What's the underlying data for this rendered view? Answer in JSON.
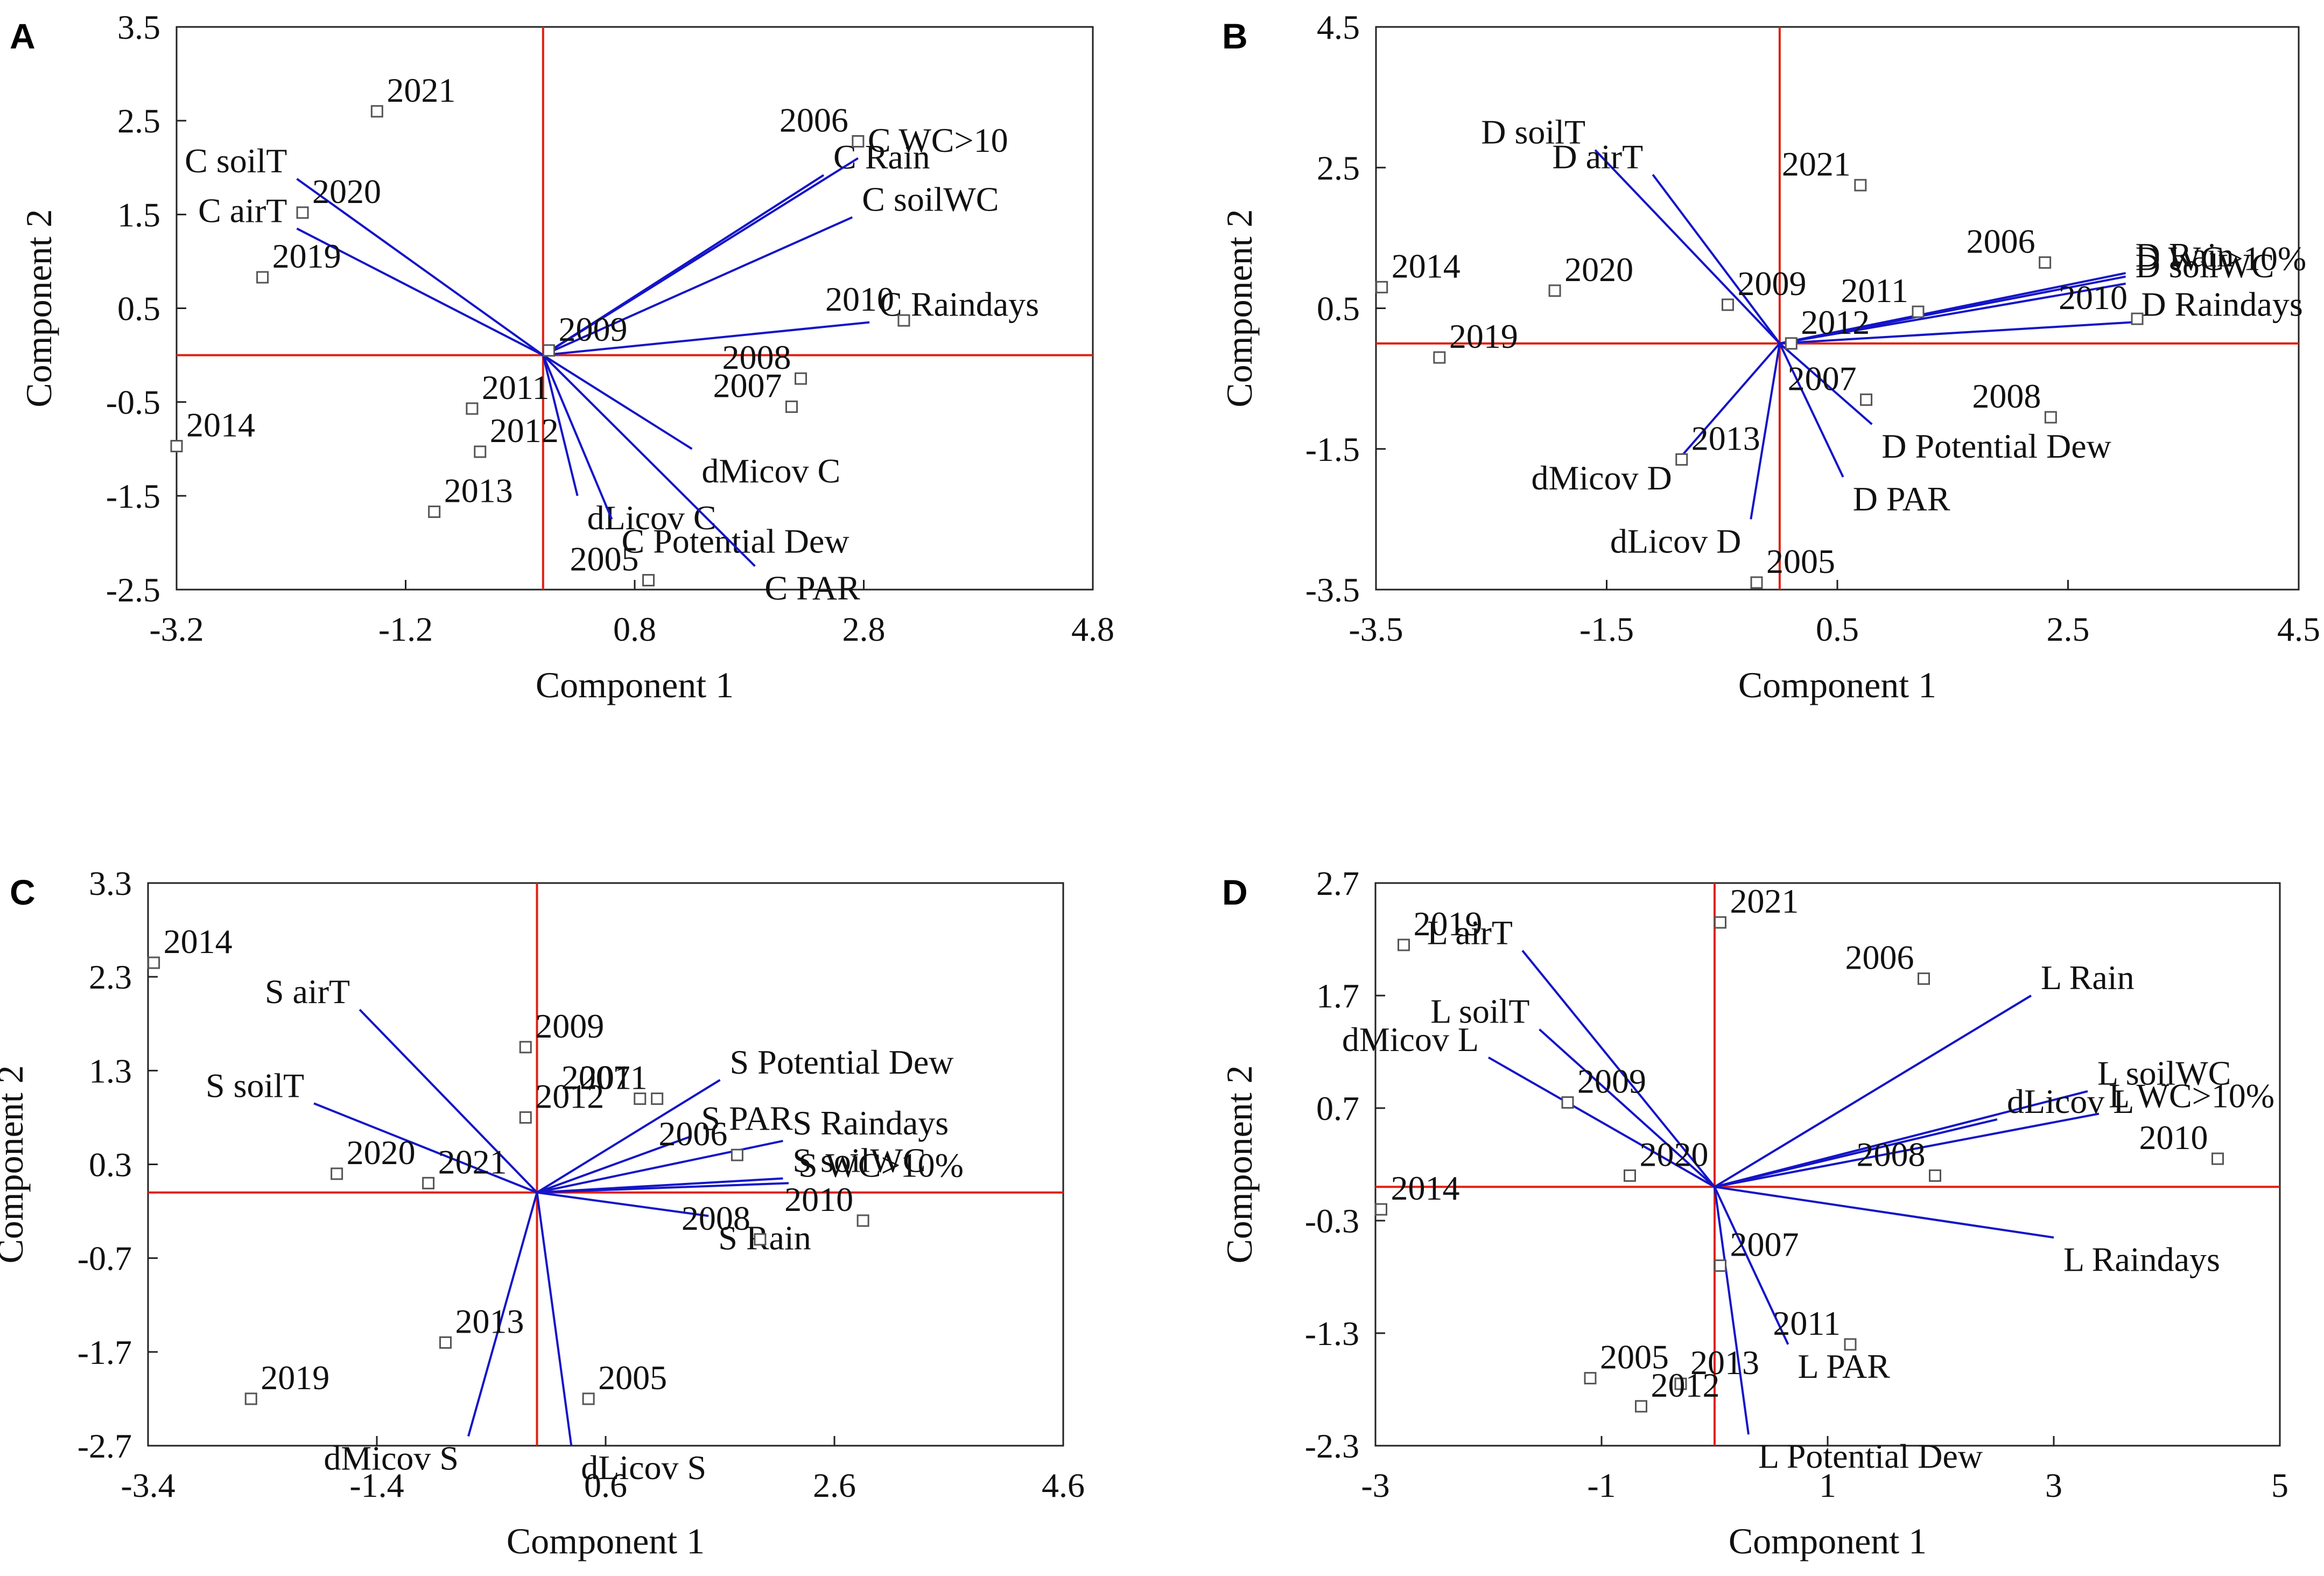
{
  "colors": {
    "axis_lines": "#e02010",
    "vectors": "#1414c8",
    "frame": "#222222",
    "marker": "#555555"
  },
  "chart_data": [
    {
      "type": "scatter",
      "panel": "A",
      "xlabel": "Component 1",
      "ylabel": "Component 2",
      "xlim": [
        -3.2,
        4.8
      ],
      "ylim": [
        -2.5,
        3.5
      ],
      "xticks": [
        "-3.2",
        "-1.2",
        "0.8",
        "2.8",
        "4.8"
      ],
      "yticks": [
        "3.5",
        "2.5",
        "1.5",
        "0.5",
        "-0.5",
        "-1.5",
        "-2.5"
      ],
      "points": [
        {
          "label": "2021",
          "x": -1.45,
          "y": 2.6
        },
        {
          "label": "2006",
          "x": 2.75,
          "y": 2.28
        },
        {
          "label": "2020",
          "x": -2.1,
          "y": 1.52
        },
        {
          "label": "2019",
          "x": -2.45,
          "y": 0.83
        },
        {
          "label": "2009",
          "x": 0.05,
          "y": 0.05
        },
        {
          "label": "2010",
          "x": 3.15,
          "y": 0.37
        },
        {
          "label": "2008",
          "x": 2.25,
          "y": -0.25
        },
        {
          "label": "2007",
          "x": 2.17,
          "y": -0.55
        },
        {
          "label": "2011",
          "x": -0.62,
          "y": -0.57
        },
        {
          "label": "2012",
          "x": -0.55,
          "y": -1.03
        },
        {
          "label": "2014",
          "x": -3.2,
          "y": -0.97
        },
        {
          "label": "2013",
          "x": -0.95,
          "y": -1.67
        },
        {
          "label": "2005",
          "x": 0.92,
          "y": -2.4
        }
      ],
      "vectors": [
        {
          "label": "C Rain",
          "x": 2.45,
          "y": 1.92
        },
        {
          "label": "C WC>10",
          "x": 2.75,
          "y": 2.1
        },
        {
          "label": "C soilWC",
          "x": 2.7,
          "y": 1.47
        },
        {
          "label": "C Raindays",
          "x": 2.85,
          "y": 0.35
        },
        {
          "label": "C soilT",
          "x": -2.15,
          "y": 1.88
        },
        {
          "label": "C airT",
          "x": -2.15,
          "y": 1.35
        },
        {
          "label": "dMicov C",
          "x": 1.3,
          "y": -1.0
        },
        {
          "label": "dLicov C",
          "x": 0.3,
          "y": -1.5
        },
        {
          "label": "C Potential Dew",
          "x": 0.6,
          "y": -1.75
        },
        {
          "label": "C PAR",
          "x": 1.85,
          "y": -2.25
        }
      ]
    },
    {
      "type": "scatter",
      "panel": "B",
      "xlabel": "Component 1",
      "ylabel": "Component 2",
      "xlim": [
        -3.5,
        4.5
      ],
      "ylim": [
        -3.5,
        4.5
      ],
      "xticks": [
        "-3.5",
        "-1.5",
        "0.5",
        "2.5",
        "4.5"
      ],
      "yticks": [
        "4.5",
        "2.5",
        "0.5",
        "-1.5",
        "-3.5"
      ],
      "points": [
        {
          "label": "2021",
          "x": 0.7,
          "y": 2.25
        },
        {
          "label": "2006",
          "x": 2.3,
          "y": 1.15
        },
        {
          "label": "2014",
          "x": -3.45,
          "y": 0.8
        },
        {
          "label": "2020",
          "x": -1.95,
          "y": 0.75
        },
        {
          "label": "2009",
          "x": -0.45,
          "y": 0.55
        },
        {
          "label": "2011",
          "x": 1.2,
          "y": 0.45
        },
        {
          "label": "2010",
          "x": 3.1,
          "y": 0.35
        },
        {
          "label": "2012",
          "x": 0.1,
          "y": 0.0
        },
        {
          "label": "2019",
          "x": -2.95,
          "y": -0.2
        },
        {
          "label": "2007",
          "x": 0.75,
          "y": -0.8
        },
        {
          "label": "2008",
          "x": 2.35,
          "y": -1.05
        },
        {
          "label": "2013",
          "x": -0.85,
          "y": -1.65
        },
        {
          "label": "2005",
          "x": -0.2,
          "y": -3.4
        }
      ],
      "vectors": [
        {
          "label": "D soilT",
          "x": -1.6,
          "y": 2.75
        },
        {
          "label": "D airT",
          "x": -1.1,
          "y": 2.4
        },
        {
          "label": "D Rain",
          "x": 3.0,
          "y": 1.0
        },
        {
          "label": "D WC>10%",
          "x": 3.0,
          "y": 0.95
        },
        {
          "label": "D soilWC",
          "x": 3.0,
          "y": 0.85
        },
        {
          "label": "D Raindays",
          "x": 3.05,
          "y": 0.3
        },
        {
          "label": "D Potential Dew",
          "x": 0.8,
          "y": -1.15
        },
        {
          "label": "D PAR",
          "x": 0.55,
          "y": -1.9
        },
        {
          "label": "dLicov D",
          "x": -0.25,
          "y": -2.5
        },
        {
          "label": "dMicov D",
          "x": -0.85,
          "y": -1.6
        }
      ]
    },
    {
      "type": "scatter",
      "panel": "C",
      "xlabel": "Component 1",
      "ylabel": "Component 2",
      "xlim": [
        -3.4,
        4.6
      ],
      "ylim": [
        -2.7,
        3.3
      ],
      "xticks": [
        "-3.4",
        "-1.4",
        "0.6",
        "2.6",
        "4.6"
      ],
      "yticks": [
        "3.3",
        "2.3",
        "1.3",
        "0.3",
        "-0.7",
        "-1.7",
        "-2.7"
      ],
      "points": [
        {
          "label": "2014",
          "x": -3.35,
          "y": 2.45
        },
        {
          "label": "2009",
          "x": -0.1,
          "y": 1.55
        },
        {
          "label": "2012",
          "x": -0.1,
          "y": 0.8
        },
        {
          "label": "2007",
          "x": 0.9,
          "y": 1.0
        },
        {
          "label": "2011",
          "x": 1.05,
          "y": 1.0
        },
        {
          "label": "2006",
          "x": 1.75,
          "y": 0.4
        },
        {
          "label": "2020",
          "x": -1.75,
          "y": 0.2
        },
        {
          "label": "2021",
          "x": -0.95,
          "y": 0.1
        },
        {
          "label": "2008",
          "x": 1.95,
          "y": -0.5
        },
        {
          "label": "2010",
          "x": 2.85,
          "y": -0.3
        },
        {
          "label": "2013",
          "x": -0.8,
          "y": -1.6
        },
        {
          "label": "2005",
          "x": 0.45,
          "y": -2.2
        },
        {
          "label": "2019",
          "x": -2.5,
          "y": -2.2
        }
      ],
      "vectors": [
        {
          "label": "S airT",
          "x": -1.55,
          "y": 1.95
        },
        {
          "label": "S soilT",
          "x": -1.95,
          "y": 0.95
        },
        {
          "label": "S Potential Dew",
          "x": 1.6,
          "y": 1.2
        },
        {
          "label": "S PAR",
          "x": 1.35,
          "y": 0.6
        },
        {
          "label": "S Raindays",
          "x": 2.15,
          "y": 0.55
        },
        {
          "label": "S soilWC",
          "x": 2.15,
          "y": 0.15
        },
        {
          "label": "S WC>10%",
          "x": 2.2,
          "y": 0.1
        },
        {
          "label": "S Rain",
          "x": 1.5,
          "y": -0.25
        },
        {
          "label": "dMicov S",
          "x": -0.6,
          "y": -2.6
        },
        {
          "label": "dLicov S",
          "x": 0.3,
          "y": -2.7
        }
      ]
    },
    {
      "type": "scatter",
      "panel": "D",
      "xlabel": "Component 1",
      "ylabel": "Component 2",
      "xlim": [
        -3.0,
        5.0
      ],
      "ylim": [
        -2.3,
        2.7
      ],
      "xticks": [
        "-3",
        "-1",
        "1",
        "3",
        "5"
      ],
      "yticks": [
        "2.7",
        "1.7",
        "0.7",
        "-0.3",
        "-1.3",
        "-2.3"
      ],
      "points": [
        {
          "label": "2021",
          "x": 0.05,
          "y": 2.35
        },
        {
          "label": "2019",
          "x": -2.75,
          "y": 2.15
        },
        {
          "label": "2006",
          "x": 1.85,
          "y": 1.85
        },
        {
          "label": "2009",
          "x": -1.3,
          "y": 0.75
        },
        {
          "label": "2020",
          "x": -0.75,
          "y": 0.1
        },
        {
          "label": "2008",
          "x": 1.95,
          "y": 0.1
        },
        {
          "label": "2010",
          "x": 4.45,
          "y": 0.25
        },
        {
          "label": "2014",
          "x": -2.95,
          "y": -0.2
        },
        {
          "label": "2007",
          "x": 0.05,
          "y": -0.7
        },
        {
          "label": "2011",
          "x": 1.2,
          "y": -1.4
        },
        {
          "label": "2005",
          "x": -1.1,
          "y": -1.7
        },
        {
          "label": "2013",
          "x": -0.3,
          "y": -1.75
        },
        {
          "label": "2012",
          "x": -0.65,
          "y": -1.95
        }
      ],
      "vectors": [
        {
          "label": "L airT",
          "x": -1.7,
          "y": 2.1
        },
        {
          "label": "L soilT",
          "x": -1.55,
          "y": 1.4
        },
        {
          "label": "dMicov L",
          "x": -2.0,
          "y": 1.15
        },
        {
          "label": "L Rain",
          "x": 2.8,
          "y": 1.7
        },
        {
          "label": "L soilWC",
          "x": 3.3,
          "y": 0.85
        },
        {
          "label": "dLicov L",
          "x": 2.5,
          "y": 0.6
        },
        {
          "label": "L WC>10%",
          "x": 3.4,
          "y": 0.65
        },
        {
          "label": "L Raindays",
          "x": 3.0,
          "y": -0.45
        },
        {
          "label": "L PAR",
          "x": 0.65,
          "y": -1.4
        },
        {
          "label": "L Potential Dew",
          "x": 0.3,
          "y": -2.2
        }
      ]
    }
  ]
}
